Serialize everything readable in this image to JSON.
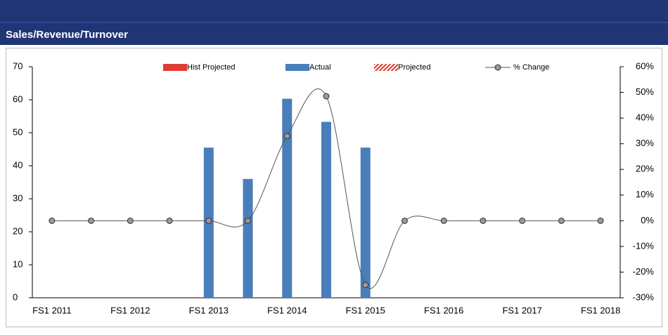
{
  "header": {
    "title": "Sales/Revenue/Turnover"
  },
  "chart_data": {
    "type": "bar-line",
    "categories": [
      "FS1 2011",
      null,
      "FS1 2012",
      null,
      "FS1 2013",
      null,
      "FS1 2014",
      null,
      "FS1 2015",
      null,
      "FS1 2016",
      null,
      "FS1 2017",
      null,
      "FS1 2018"
    ],
    "series": [
      {
        "name": "Hist Projected",
        "color": "#e03c31",
        "values": [
          null,
          null,
          null,
          null,
          null,
          null,
          null,
          null,
          null,
          null,
          null,
          null,
          null,
          null,
          null
        ]
      },
      {
        "name": "Actual",
        "color": "#4a7ebb",
        "values": [
          null,
          null,
          null,
          null,
          45.5,
          36,
          60.3,
          53.3,
          45.5,
          null,
          null,
          null,
          null,
          null,
          null
        ]
      },
      {
        "name": "Projected",
        "color": "#e03c31",
        "pattern": "hatched",
        "values": [
          null,
          null,
          null,
          null,
          null,
          null,
          null,
          null,
          null,
          null,
          null,
          null,
          null,
          null,
          null
        ]
      },
      {
        "name": "% Change",
        "color": "#555555",
        "axis": "y2",
        "kind": "line",
        "values": [
          0,
          0,
          0,
          0,
          0,
          0,
          33,
          48.5,
          -25,
          0,
          0,
          0,
          0,
          0,
          0
        ]
      }
    ],
    "ylim": [
      0,
      70
    ],
    "yticks": [
      0,
      10,
      20,
      30,
      40,
      50,
      60,
      70
    ],
    "y2lim": [
      -30,
      60
    ],
    "y2ticks": [
      {
        "value": -30,
        "label": "-30%"
      },
      {
        "value": -20,
        "label": "-20%"
      },
      {
        "value": -10,
        "label": "-10%"
      },
      {
        "value": 0,
        "label": "0%"
      },
      {
        "value": 10,
        "label": "10%"
      },
      {
        "value": 20,
        "label": "20%"
      },
      {
        "value": 30,
        "label": "30%"
      },
      {
        "value": 40,
        "label": "40%"
      },
      {
        "value": 50,
        "label": "50%"
      },
      {
        "value": 60,
        "label": "60%"
      }
    ],
    "legend": "top"
  }
}
